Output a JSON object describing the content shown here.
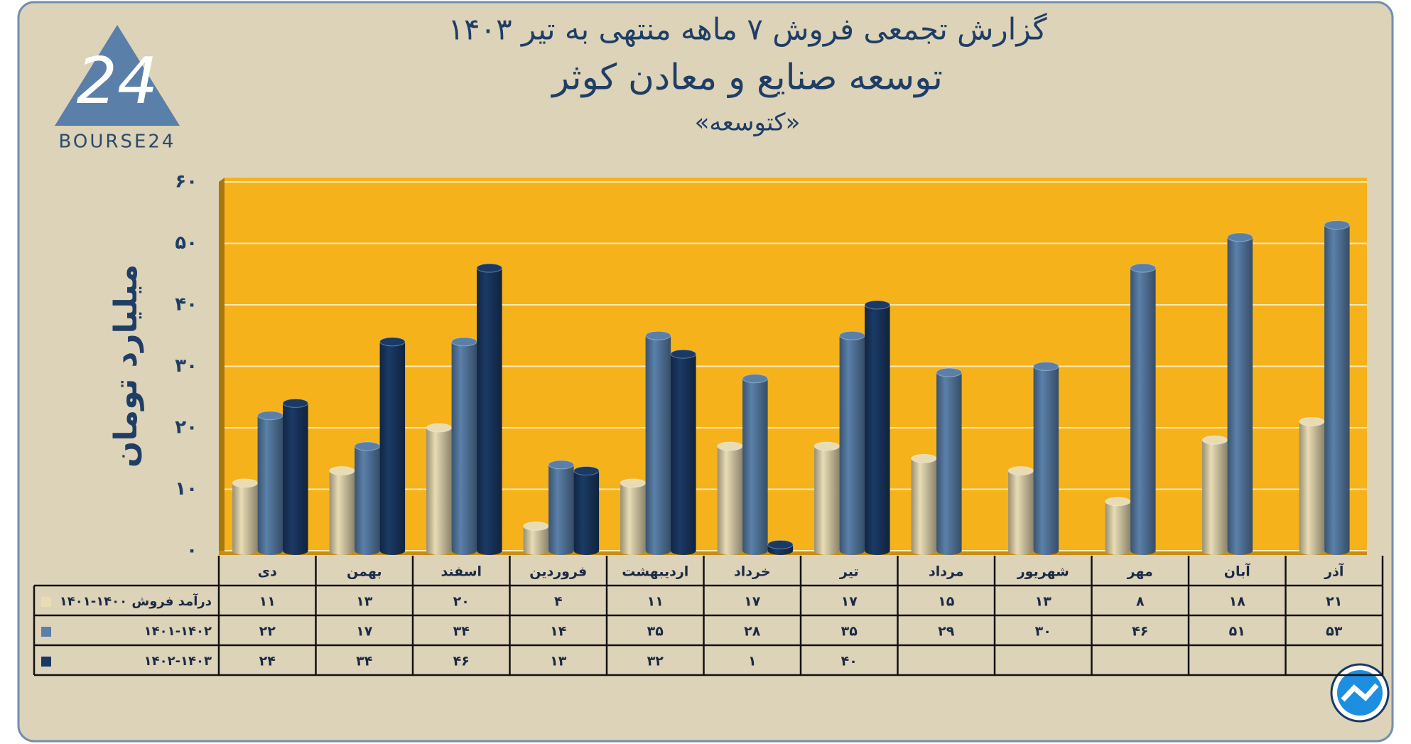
{
  "logo": {
    "mark": "24",
    "text": "BOURSE24"
  },
  "chart_data": {
    "type": "bar",
    "title": "گزارش تجمعی فروش ۷ ماهه منتهی به تیر ۱۴۰۳",
    "subtitle": "توسعه صنایع و معادن کوثر",
    "subtitle2": "«کتوسعه»",
    "y_label": "میلیارد تومان",
    "categories": [
      "دی",
      "بهمن",
      "اسفند",
      "فروردین",
      "اردیبهشت",
      "خرداد",
      "تیر",
      "مرداد",
      "شهریور",
      "مهر",
      "آبان",
      "آذر"
    ],
    "series": [
      {
        "name": "درآمد فروش ۱۴۰۰-۱۴۰۱",
        "color": "#e8dcb4",
        "values": [
          11,
          13,
          20,
          4,
          11,
          17,
          17,
          15,
          13,
          8,
          18,
          21
        ],
        "value_labels": [
          "۱۱",
          "۱۳",
          "۲۰",
          "۴",
          "۱۱",
          "۱۷",
          "۱۷",
          "۱۵",
          "۱۳",
          "۸",
          "۱۸",
          "۲۱"
        ]
      },
      {
        "name": "۱۴۰۱-۱۴۰۲",
        "color": "#5a80aa",
        "values": [
          22,
          17,
          34,
          14,
          35,
          28,
          35,
          29,
          30,
          46,
          51,
          53
        ],
        "value_labels": [
          "۲۲",
          "۱۷",
          "۳۴",
          "۱۴",
          "۳۵",
          "۲۸",
          "۳۵",
          "۲۹",
          "۳۰",
          "۴۶",
          "۵۱",
          "۵۳"
        ]
      },
      {
        "name": "۱۴۰۲-۱۴۰۳",
        "color": "#1a3a66",
        "values": [
          24,
          34,
          46,
          13,
          32,
          1,
          40,
          null,
          null,
          null,
          null,
          null
        ],
        "value_labels": [
          "۲۴",
          "۳۴",
          "۴۶",
          "۱۳",
          "۳۲",
          "۱",
          "۴۰",
          null,
          null,
          null,
          null,
          null
        ]
      }
    ],
    "ylim": [
      0,
      60
    ],
    "yticks": [
      {
        "value": 0,
        "label": "۰"
      },
      {
        "value": 10,
        "label": "۱۰"
      },
      {
        "value": 20,
        "label": "۲۰"
      },
      {
        "value": 30,
        "label": "۳۰"
      },
      {
        "value": 40,
        "label": "۴۰"
      },
      {
        "value": 50,
        "label": "۵۰"
      },
      {
        "value": 60,
        "label": "۶۰"
      }
    ],
    "grid": true
  }
}
